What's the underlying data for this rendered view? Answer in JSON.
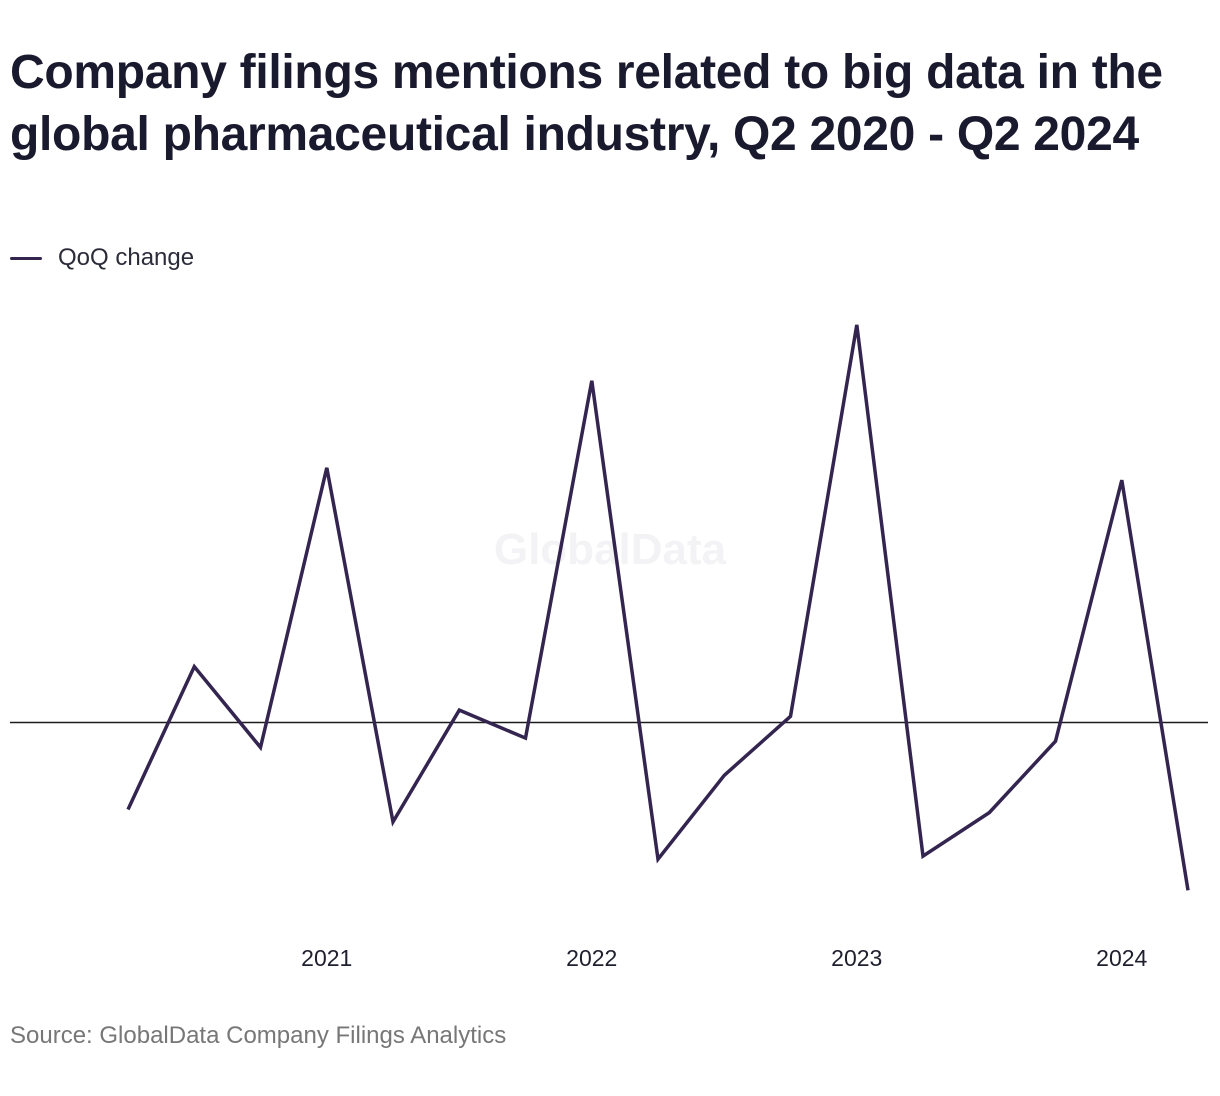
{
  "title": "Company filings mentions related to big data in the global pharmaceutical industry, Q2 2020 - Q2 2024",
  "source": "Source: GlobalData Company Filings Analytics",
  "watermark": "GlobalData",
  "colors": {
    "series": "#33254f",
    "zero_line": "#1c1c1c",
    "source_text": "#777777"
  },
  "chart_data": {
    "type": "line",
    "x": [
      "Q2 2020",
      "Q3 2020",
      "Q4 2020",
      "Q1 2021",
      "Q2 2021",
      "Q3 2021",
      "Q4 2021",
      "Q1 2022",
      "Q2 2022",
      "Q3 2022",
      "Q4 2022",
      "Q1 2023",
      "Q2 2023",
      "Q3 2023",
      "Q4 2023",
      "Q1 2024",
      "Q2 2024"
    ],
    "series": [
      {
        "name": "QoQ change",
        "values": [
          -14,
          9,
          -4,
          41,
          -16,
          2,
          -2.5,
          55,
          -22,
          -8.5,
          1,
          64,
          -21.5,
          -14.5,
          -3,
          39,
          -27
        ]
      }
    ],
    "x_tick_labels": [
      "2021",
      "2022",
      "2023",
      "2024"
    ],
    "x_tick_positions": [
      "Q1 2021",
      "Q1 2022",
      "Q1 2023",
      "Q1 2024"
    ],
    "ylim": [
      -35,
      68
    ],
    "zero_line": true,
    "y_axis_labels_shown": false,
    "grid": false,
    "legend_position": "top-left"
  }
}
